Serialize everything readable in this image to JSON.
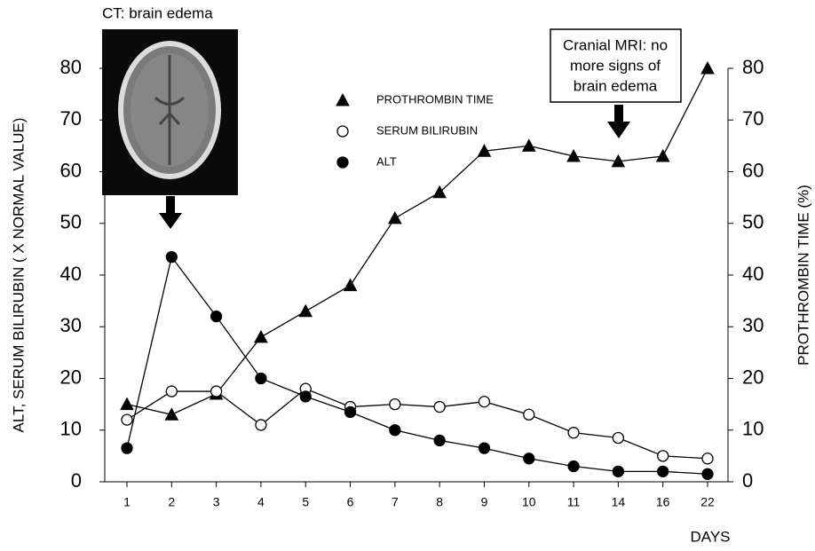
{
  "chart_data": {
    "type": "line",
    "annotations": {
      "ct": "CT: brain edema",
      "mri": [
        "Cranial MRI: no",
        "more signs of",
        "brain edema"
      ]
    },
    "ylabel": "ALT, SERUM BILIRUBIN ( X NORMAL VALUE)",
    "y2label": "PROTHROMBIN TIME (%)",
    "xlabel": "DAYS",
    "categories": [
      "1",
      "2",
      "3",
      "4",
      "5",
      "6",
      "7",
      "8",
      "9",
      "10",
      "11",
      "14",
      "16",
      "22"
    ],
    "ylim": [
      0,
      80
    ],
    "yticks": [
      0,
      10,
      20,
      30,
      40,
      50,
      60,
      70,
      80
    ],
    "y2lim": [
      0,
      80
    ],
    "y2ticks": [
      0,
      10,
      20,
      30,
      40,
      50,
      60,
      70,
      80
    ],
    "series": [
      {
        "name": "PROTHROMBIN TIME",
        "axis": "y2",
        "marker": "triangle",
        "color": "#000000",
        "fill": "#000000",
        "values": [
          15,
          13,
          17,
          28,
          33,
          38,
          51,
          56,
          64,
          65,
          63,
          62,
          63,
          80
        ]
      },
      {
        "name": "SERUM BILIRUBIN",
        "marker": "circle",
        "color": "#000000",
        "fill": "#ffffff",
        "values": [
          12,
          17.5,
          17.5,
          11,
          18,
          14.5,
          15,
          14.5,
          15.5,
          13,
          9.5,
          8.5,
          5,
          4.5
        ]
      },
      {
        "name": "ALT",
        "marker": "circle",
        "color": "#000000",
        "fill": "#000000",
        "values": [
          6.5,
          43.5,
          32,
          20,
          16.5,
          13.5,
          10,
          8,
          6.5,
          4.5,
          3,
          2,
          2,
          1.5
        ]
      }
    ]
  }
}
